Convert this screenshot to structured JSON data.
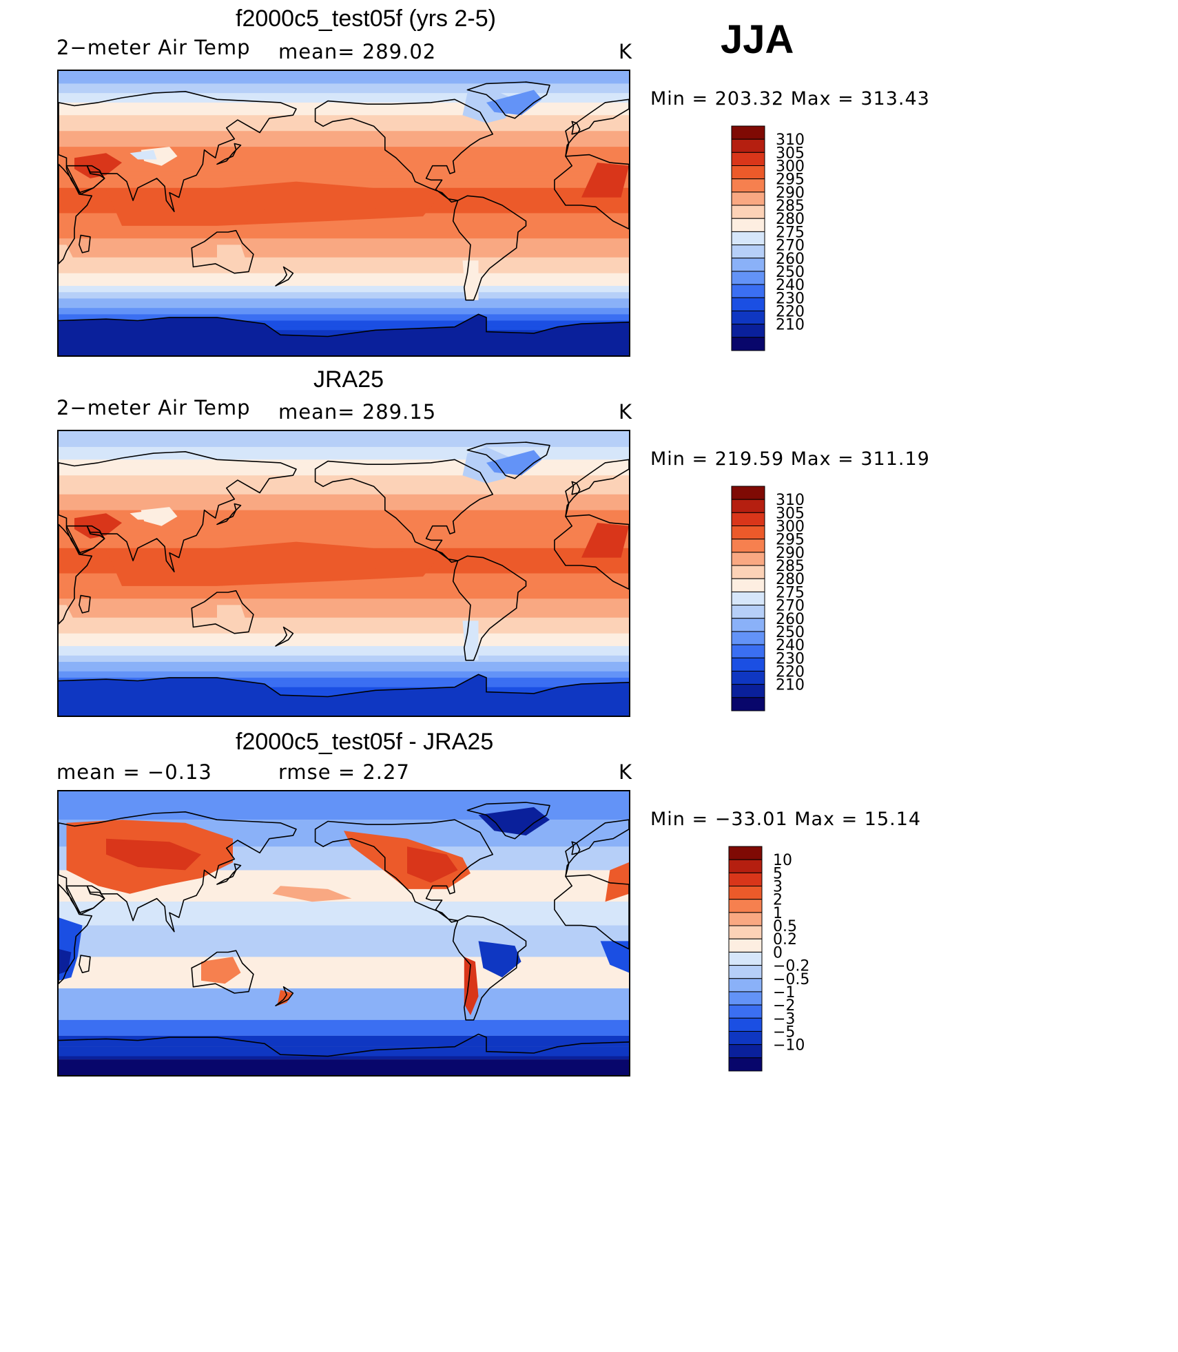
{
  "season": "JJA",
  "unit_label": "K",
  "panels": [
    {
      "title": "f2000c5_test05f (yrs 2-5)",
      "left_label": "2−meter Air Temp",
      "center_label": "mean=  289.02",
      "minmax": "Min  =  203.32  Max  =  313.43"
    },
    {
      "title": "JRA25",
      "left_label": "2−meter Air Temp",
      "center_label": "mean=  289.15",
      "minmax": "Min  =  219.59  Max  =  311.19"
    },
    {
      "title": "f2000c5_test05f - JRA25",
      "left_label": "mean  =    −0.13",
      "center_label": "rmse  =     2.27",
      "minmax": "Min  =  −33.01  Max  =    15.14"
    }
  ],
  "colors": {
    "abs_palette": [
      "#08066b",
      "#0a209b",
      "#0f37c2",
      "#1b4fe3",
      "#3b6ff2",
      "#6393f7",
      "#8ab1f8",
      "#b6cff8",
      "#d6e6fa",
      "#fdeee1",
      "#fcd2b7",
      "#f9a882",
      "#f6804f",
      "#ec5a2a",
      "#d9361a",
      "#b51f10",
      "#7f0a04"
    ],
    "diff_palette": [
      "#08066b",
      "#0a209b",
      "#0f37c2",
      "#1b4fe3",
      "#3b6ff2",
      "#6393f7",
      "#8ab1f8",
      "#b6cff8",
      "#d6e6fa",
      "#fdeee1",
      "#fcd2b7",
      "#f9a882",
      "#f6804f",
      "#ec5a2a",
      "#d9361a",
      "#b51f10",
      "#7f0a04"
    ],
    "coastline": "#000000"
  },
  "chart_data": [
    {
      "type": "heatmap",
      "title": "f2000c5_test05f (yrs 2-5)",
      "variable": "2−meter Air Temp",
      "unit": "K",
      "mean": 289.02,
      "min": 203.32,
      "max": 313.43,
      "colorbar_levels": [
        210,
        220,
        230,
        240,
        250,
        260,
        270,
        275,
        280,
        285,
        290,
        295,
        300,
        305,
        310
      ],
      "colorbar_labels": [
        "310",
        "305",
        "300",
        "295",
        "290",
        "285",
        "280",
        "275",
        "270",
        "260",
        "250",
        "240",
        "230",
        "220",
        "210"
      ],
      "lat_bands": [
        {
          "lat": 85,
          "value": 268
        },
        {
          "lat": 70,
          "value": 280
        },
        {
          "lat": 55,
          "value": 289
        },
        {
          "lat": 40,
          "value": 296
        },
        {
          "lat": 25,
          "value": 298
        },
        {
          "lat": 10,
          "value": 301
        },
        {
          "lat": 0,
          "value": 300
        },
        {
          "lat": -10,
          "value": 297
        },
        {
          "lat": -25,
          "value": 292
        },
        {
          "lat": -40,
          "value": 284
        },
        {
          "lat": -50,
          "value": 276
        },
        {
          "lat": -60,
          "value": 262
        },
        {
          "lat": -70,
          "value": 235
        },
        {
          "lat": -85,
          "value": 215
        }
      ]
    },
    {
      "type": "heatmap",
      "title": "JRA25",
      "variable": "2−meter Air Temp",
      "unit": "K",
      "mean": 289.15,
      "min": 219.59,
      "max": 311.19,
      "colorbar_levels": [
        210,
        220,
        230,
        240,
        250,
        260,
        270,
        275,
        280,
        285,
        290,
        295,
        300,
        305,
        310
      ],
      "colorbar_labels": [
        "310",
        "305",
        "300",
        "295",
        "290",
        "285",
        "280",
        "275",
        "270",
        "260",
        "250",
        "240",
        "230",
        "220",
        "210"
      ],
      "lat_bands": [
        {
          "lat": 85,
          "value": 272
        },
        {
          "lat": 70,
          "value": 281
        },
        {
          "lat": 55,
          "value": 288
        },
        {
          "lat": 40,
          "value": 295
        },
        {
          "lat": 25,
          "value": 298
        },
        {
          "lat": 10,
          "value": 301
        },
        {
          "lat": 0,
          "value": 300
        },
        {
          "lat": -10,
          "value": 297
        },
        {
          "lat": -25,
          "value": 292
        },
        {
          "lat": -40,
          "value": 284
        },
        {
          "lat": -50,
          "value": 277
        },
        {
          "lat": -60,
          "value": 265
        },
        {
          "lat": -70,
          "value": 242
        },
        {
          "lat": -85,
          "value": 228
        }
      ]
    },
    {
      "type": "heatmap",
      "title": "f2000c5_test05f - JRA25",
      "unit": "K",
      "mean": -0.13,
      "rmse": 2.27,
      "min": -33.01,
      "max": 15.14,
      "colorbar_levels": [
        -10,
        -5,
        -3,
        -2,
        -1,
        -0.5,
        -0.2,
        0,
        0.2,
        0.5,
        1,
        2,
        3,
        5,
        10
      ],
      "colorbar_labels": [
        "10",
        "5",
        "3",
        "2",
        "1",
        "0.5",
        "0.2",
        "0",
        "−0.2",
        "−0.5",
        "−1",
        "−2",
        "−3",
        "−5",
        "−10"
      ]
    }
  ]
}
